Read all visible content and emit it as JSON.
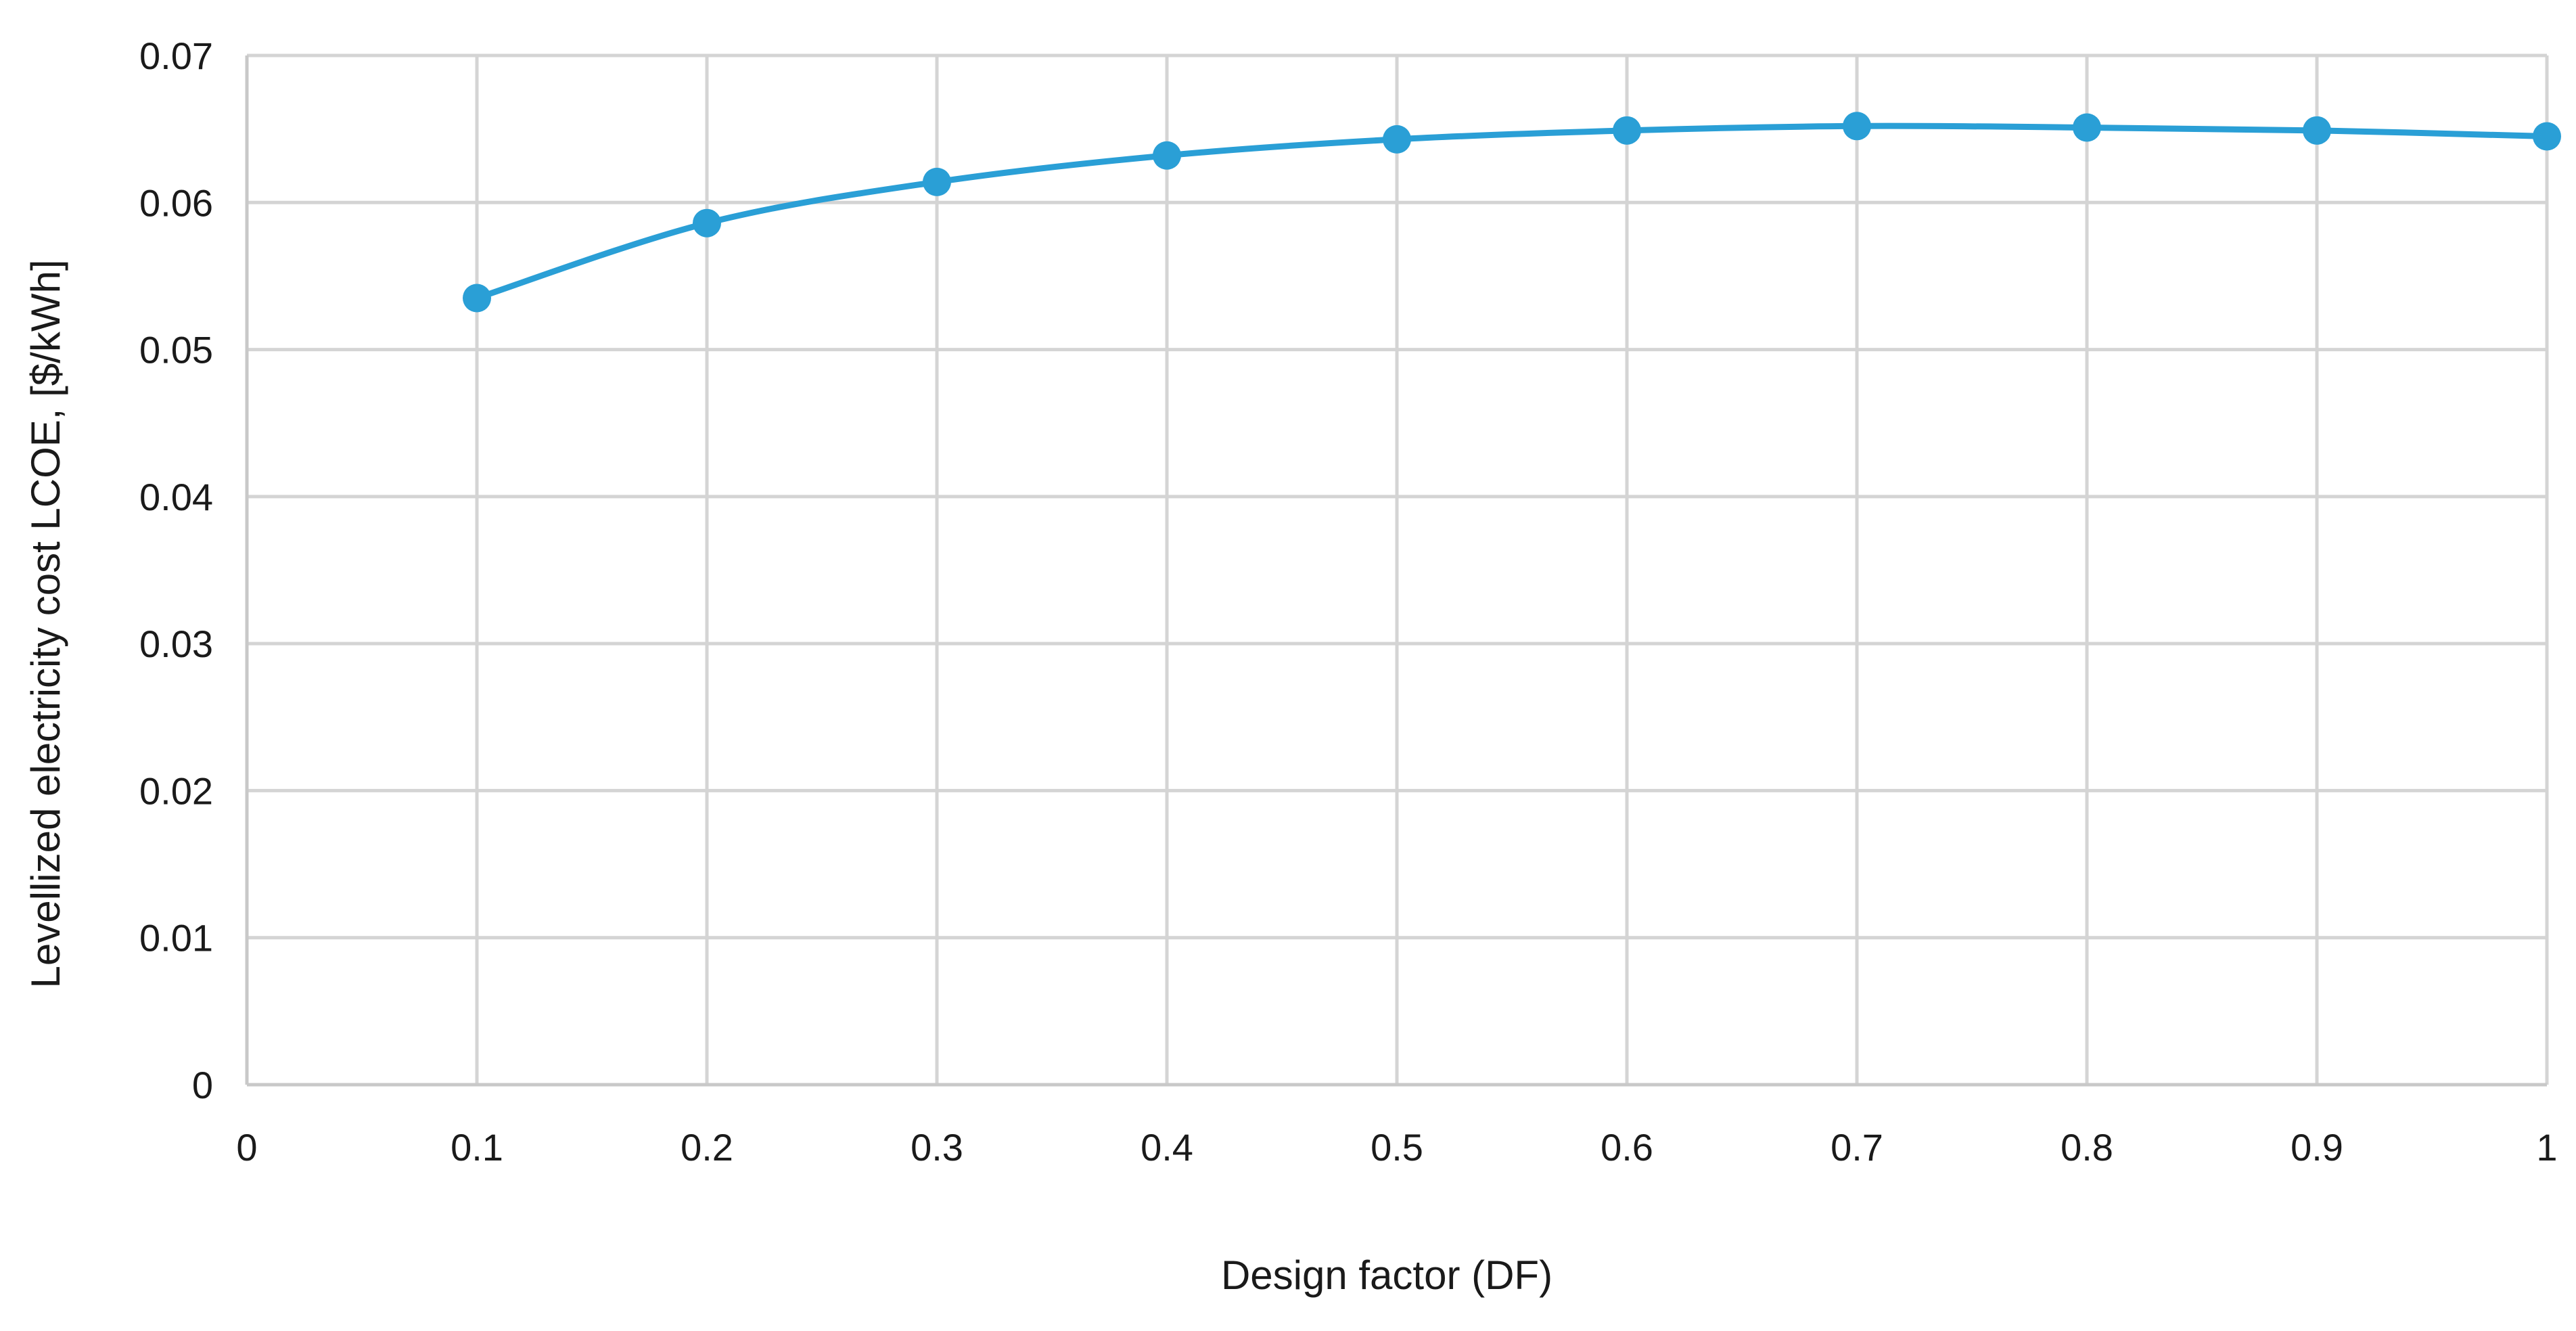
{
  "chart_data": {
    "type": "line",
    "title": "",
    "xlabel": "Design factor (DF)",
    "ylabel": "Levellized electricity cost LCOE, [$/kWh]",
    "xlim": [
      0,
      1
    ],
    "ylim": [
      0,
      0.07
    ],
    "x_ticks": [
      "0",
      "0.1",
      "0.2",
      "0.3",
      "0.4",
      "0.5",
      "0.6",
      "0.7",
      "0.8",
      "0.9",
      "1"
    ],
    "y_ticks": [
      "0",
      "0.01",
      "0.02",
      "0.03",
      "0.04",
      "0.05",
      "0.06",
      "0.07"
    ],
    "grid": true,
    "legend": "none",
    "series": [
      {
        "color": "#2a9fd6",
        "marker": "circle",
        "smooth": true,
        "x": [
          0.1,
          0.2,
          0.3,
          0.4,
          0.5,
          0.6,
          0.7,
          0.8,
          0.9,
          1.0
        ],
        "y": [
          0.0535,
          0.0586,
          0.0614,
          0.0632,
          0.0643,
          0.0649,
          0.0652,
          0.0651,
          0.0649,
          0.0645
        ]
      }
    ]
  }
}
